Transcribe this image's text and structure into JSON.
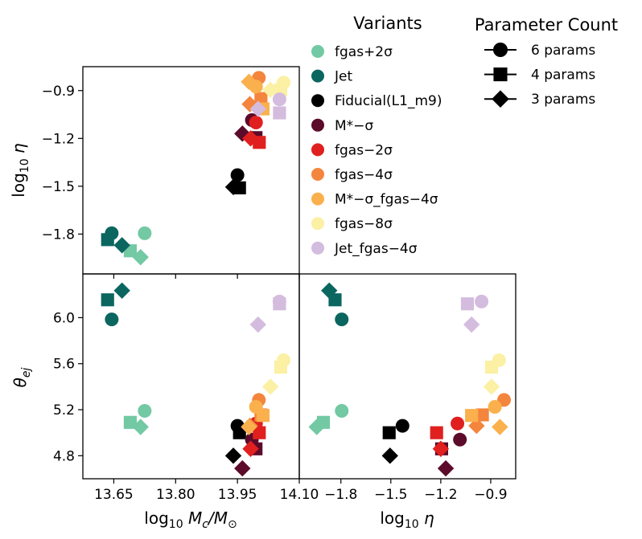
{
  "legend": {
    "variants_title": "Variants",
    "params_title": "Parameter Count",
    "variants": [
      {
        "name": "fgas+2σ",
        "color": "#72c9a3"
      },
      {
        "name": "Jet",
        "color": "#0b6660"
      },
      {
        "name": "Fiducial(L1_m9)",
        "color": "#000000"
      },
      {
        "name": "M*−σ",
        "color": "#5c0b2a"
      },
      {
        "name": "fgas−2σ",
        "color": "#e0201f"
      },
      {
        "name": "fgas−4σ",
        "color": "#f4853d"
      },
      {
        "name": "M*−σ_fgas−4σ",
        "color": "#fab04c"
      },
      {
        "name": "fgas−8σ",
        "color": "#fbf0a4"
      },
      {
        "name": "Jet_fgas−4σ",
        "color": "#d4bcde"
      }
    ],
    "params": [
      {
        "label": "6 params",
        "marker": "circle"
      },
      {
        "label": "4 params",
        "marker": "square"
      },
      {
        "label": "3 params",
        "marker": "diamond"
      }
    ]
  },
  "chart_data": {
    "type": "scatter",
    "layout": "corner-plot",
    "variables": [
      "log10 Mc/M☉",
      "log10 η",
      "θej"
    ],
    "axis_labels": {
      "log10Mc": {
        "text": "log",
        "sub": "10",
        "rest": "M",
        "rest_sub": "c",
        "slash": "/M",
        "slash_sub": "⊙"
      },
      "log10eta": {
        "text": "log",
        "sub": "10",
        "rest": "η"
      },
      "theta": {
        "text": "θ",
        "sub": "ej"
      }
    },
    "ranges": {
      "log10Mc": [
        13.575,
        14.1
      ],
      "log10eta": [
        -2.05,
        -0.75
      ],
      "theta": [
        4.6,
        6.38
      ]
    },
    "ticks": {
      "log10Mc": [
        "13.65",
        "13.80",
        "13.95",
        "14.10"
      ],
      "log10Mc_values": [
        13.65,
        13.8,
        13.95,
        14.1
      ],
      "log10eta": [
        "−1.8",
        "−1.5",
        "−1.2",
        "−0.9"
      ],
      "log10eta_values": [
        -1.8,
        -1.5,
        -1.2,
        -0.9
      ],
      "theta": [
        "4.8",
        "5.2",
        "5.6",
        "6.0"
      ],
      "theta_values": [
        4.8,
        5.2,
        5.6,
        6.0
      ]
    },
    "points": [
      {
        "variant": "fgas+2σ",
        "marker": "circle",
        "log10Mc": 13.725,
        "log10eta": -1.795,
        "theta": 5.19
      },
      {
        "variant": "fgas+2σ",
        "marker": "square",
        "log10Mc": 13.69,
        "log10eta": -1.905,
        "theta": 5.09
      },
      {
        "variant": "fgas+2σ",
        "marker": "diamond",
        "log10Mc": 13.715,
        "log10eta": -1.945,
        "theta": 5.05
      },
      {
        "variant": "Jet",
        "marker": "circle",
        "log10Mc": 13.645,
        "log10eta": -1.795,
        "theta": 5.985
      },
      {
        "variant": "Jet",
        "marker": "square",
        "log10Mc": 13.635,
        "log10eta": -1.835,
        "theta": 6.155
      },
      {
        "variant": "Jet",
        "marker": "diamond",
        "log10Mc": 13.67,
        "log10eta": -1.87,
        "theta": 6.235
      },
      {
        "variant": "Fiducial(L1_m9)",
        "marker": "circle",
        "log10Mc": 13.95,
        "log10eta": -1.43,
        "theta": 5.06
      },
      {
        "variant": "Fiducial(L1_m9)",
        "marker": "square",
        "log10Mc": 13.955,
        "log10eta": -1.51,
        "theta": 5.0
      },
      {
        "variant": "Fiducial(L1_m9)",
        "marker": "diamond",
        "log10Mc": 13.94,
        "log10eta": -1.505,
        "theta": 4.8
      },
      {
        "variant": "M*−σ",
        "marker": "circle",
        "log10Mc": 13.985,
        "log10eta": -1.085,
        "theta": 4.94
      },
      {
        "variant": "M*−σ",
        "marker": "square",
        "log10Mc": 13.995,
        "log10eta": -1.195,
        "theta": 4.86
      },
      {
        "variant": "M*−σ",
        "marker": "diamond",
        "log10Mc": 13.962,
        "log10eta": -1.17,
        "theta": 4.69
      },
      {
        "variant": "fgas−2σ",
        "marker": "circle",
        "log10Mc": 13.995,
        "log10eta": -1.1,
        "theta": 5.08
      },
      {
        "variant": "fgas−2σ",
        "marker": "square",
        "log10Mc": 14.003,
        "log10eta": -1.225,
        "theta": 5.0
      },
      {
        "variant": "fgas−2σ",
        "marker": "diamond",
        "log10Mc": 13.982,
        "log10eta": -1.2,
        "theta": 4.86
      },
      {
        "variant": "fgas−4σ",
        "marker": "circle",
        "log10Mc": 14.002,
        "log10eta": -0.82,
        "theta": 5.285
      },
      {
        "variant": "fgas−4σ",
        "marker": "square",
        "log10Mc": 14.007,
        "log10eta": -0.95,
        "theta": 5.155
      },
      {
        "variant": "fgas−4σ",
        "marker": "diamond",
        "log10Mc": 13.98,
        "log10eta": -0.985,
        "theta": 5.06
      },
      {
        "variant": "M*−σ_fgas−4σ",
        "marker": "circle",
        "log10Mc": 13.995,
        "log10eta": -0.875,
        "theta": 5.225
      },
      {
        "variant": "M*−σ_fgas−4σ",
        "marker": "square",
        "log10Mc": 14.012,
        "log10eta": -1.015,
        "theta": 5.15
      },
      {
        "variant": "M*−σ_fgas−4σ",
        "marker": "diamond",
        "log10Mc": 13.978,
        "log10eta": -0.845,
        "theta": 5.05
      },
      {
        "variant": "fgas−8σ",
        "marker": "circle",
        "log10Mc": 14.062,
        "log10eta": -0.85,
        "theta": 5.63
      },
      {
        "variant": "fgas−8σ",
        "marker": "square",
        "log10Mc": 14.055,
        "log10eta": -0.895,
        "theta": 5.57
      },
      {
        "variant": "fgas−8σ",
        "marker": "diamond",
        "log10Mc": 14.03,
        "log10eta": -0.895,
        "theta": 5.4
      },
      {
        "variant": "Jet_fgas−4σ",
        "marker": "circle",
        "log10Mc": 14.052,
        "log10eta": -0.955,
        "theta": 6.14
      },
      {
        "variant": "Jet_fgas−4σ",
        "marker": "square",
        "log10Mc": 14.052,
        "log10eta": -1.04,
        "theta": 6.12
      },
      {
        "variant": "Jet_fgas−4σ",
        "marker": "diamond",
        "log10Mc": 14.0,
        "log10eta": -1.015,
        "theta": 5.94
      }
    ]
  }
}
